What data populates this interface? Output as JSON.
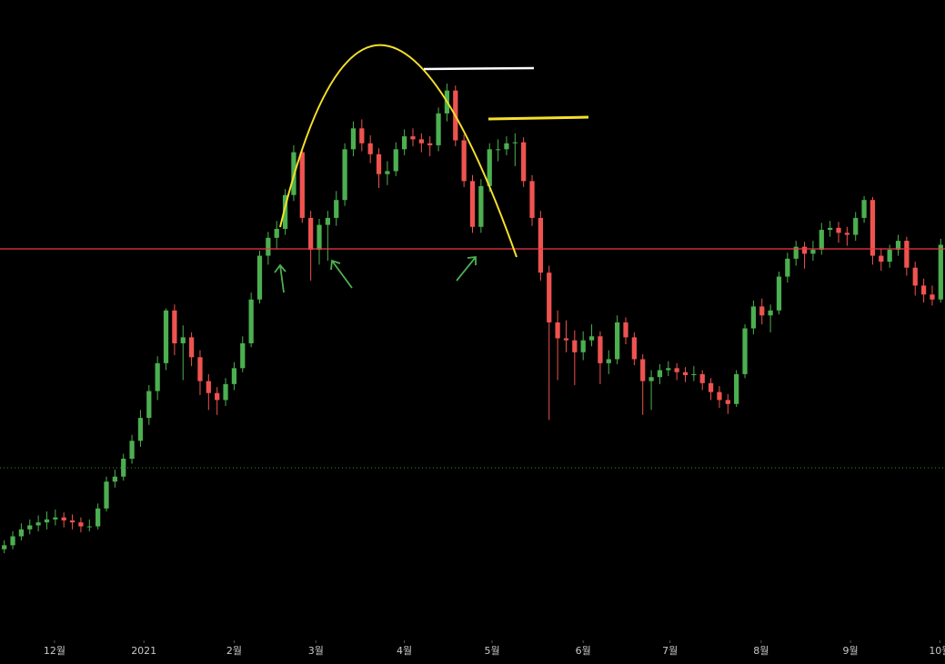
{
  "chart_data": {
    "type": "candlestick",
    "up_color": "#4caf50",
    "down_color": "#ef5350",
    "ylim": [
      9.3,
      73.2
    ],
    "xticks": [
      {
        "value": 5.9,
        "label": "12월"
      },
      {
        "value": 16.4,
        "label": "2021"
      },
      {
        "value": 27.0,
        "label": "2월"
      },
      {
        "value": 36.6,
        "label": "3월"
      },
      {
        "value": 47.0,
        "label": "4월"
      },
      {
        "value": 57.3,
        "label": "5월"
      },
      {
        "value": 68.0,
        "label": "6월"
      },
      {
        "value": 78.2,
        "label": "7월"
      },
      {
        "value": 88.9,
        "label": "8월"
      },
      {
        "value": 99.4,
        "label": "9월"
      },
      {
        "value": 109.9,
        "label": "10월"
      }
    ],
    "candles": [
      [
        18.0,
        18.9,
        17.6,
        18.4
      ],
      [
        18.4,
        19.8,
        18.0,
        19.3
      ],
      [
        19.3,
        20.6,
        18.9,
        20.0
      ],
      [
        20.0,
        21.0,
        19.5,
        20.4
      ],
      [
        20.4,
        21.4,
        19.8,
        20.7
      ],
      [
        20.7,
        21.8,
        20.0,
        21.0
      ],
      [
        21.0,
        22.0,
        20.4,
        21.2
      ],
      [
        21.2,
        21.7,
        20.2,
        20.9
      ],
      [
        20.9,
        21.5,
        20.0,
        20.7
      ],
      [
        20.7,
        21.2,
        19.7,
        20.3
      ],
      [
        20.3,
        21.0,
        19.8,
        20.3
      ],
      [
        20.3,
        22.6,
        20.0,
        22.1
      ],
      [
        22.1,
        25.3,
        21.8,
        24.8
      ],
      [
        24.8,
        26.0,
        24.2,
        25.3
      ],
      [
        25.3,
        27.6,
        24.9,
        27.1
      ],
      [
        27.1,
        29.5,
        26.6,
        28.9
      ],
      [
        28.9,
        32.0,
        28.3,
        31.2
      ],
      [
        31.2,
        34.5,
        30.5,
        33.9
      ],
      [
        33.9,
        37.4,
        33.0,
        36.7
      ],
      [
        36.7,
        42.2,
        36.0,
        42.0
      ],
      [
        42.0,
        42.6,
        37.5,
        38.7
      ],
      [
        38.7,
        40.5,
        35.0,
        39.3
      ],
      [
        39.3,
        39.8,
        36.4,
        37.3
      ],
      [
        37.3,
        38.0,
        33.5,
        34.9
      ],
      [
        34.9,
        35.6,
        32.0,
        33.7
      ],
      [
        33.7,
        34.3,
        31.5,
        33.0
      ],
      [
        33.0,
        35.2,
        32.4,
        34.6
      ],
      [
        34.6,
        36.8,
        34.0,
        36.2
      ],
      [
        36.2,
        39.4,
        35.8,
        38.7
      ],
      [
        38.7,
        43.8,
        38.3,
        43.1
      ],
      [
        43.1,
        48.0,
        42.7,
        47.5
      ],
      [
        47.5,
        49.9,
        46.6,
        49.3
      ],
      [
        49.3,
        51.0,
        48.2,
        50.2
      ],
      [
        50.2,
        54.2,
        49.6,
        53.6
      ],
      [
        53.6,
        58.6,
        53.0,
        57.9
      ],
      [
        57.9,
        58.3,
        50.8,
        51.3
      ],
      [
        51.3,
        52.0,
        45.0,
        48.1
      ],
      [
        48.1,
        51.2,
        46.6,
        50.6
      ],
      [
        50.6,
        52.0,
        47.0,
        51.3
      ],
      [
        51.3,
        54.0,
        50.5,
        53.1
      ],
      [
        53.1,
        58.8,
        52.5,
        58.2
      ],
      [
        58.2,
        61.0,
        57.5,
        60.3
      ],
      [
        60.3,
        61.2,
        58.0,
        58.8
      ],
      [
        58.8,
        59.6,
        56.8,
        57.7
      ],
      [
        57.7,
        58.3,
        54.3,
        55.7
      ],
      [
        55.7,
        57.0,
        54.6,
        56.0
      ],
      [
        56.0,
        58.9,
        55.5,
        58.2
      ],
      [
        58.2,
        60.2,
        57.6,
        59.5
      ],
      [
        59.5,
        60.3,
        58.5,
        59.2
      ],
      [
        59.2,
        59.8,
        57.9,
        58.8
      ],
      [
        58.8,
        59.5,
        57.5,
        58.6
      ],
      [
        58.6,
        62.4,
        58.0,
        61.8
      ],
      [
        61.8,
        64.8,
        61.0,
        64.1
      ],
      [
        64.1,
        64.6,
        58.5,
        59.1
      ],
      [
        59.1,
        59.7,
        54.4,
        55.0
      ],
      [
        55.0,
        55.6,
        49.8,
        50.4
      ],
      [
        50.4,
        55.2,
        49.8,
        54.5
      ],
      [
        54.5,
        58.8,
        53.9,
        58.2
      ],
      [
        58.2,
        59.2,
        57.0,
        58.2
      ],
      [
        58.2,
        59.5,
        57.6,
        58.8
      ],
      [
        58.8,
        59.8,
        56.5,
        58.9
      ],
      [
        58.9,
        59.4,
        54.4,
        55.0
      ],
      [
        55.0,
        55.6,
        50.5,
        51.3
      ],
      [
        51.3,
        52.0,
        45.0,
        45.8
      ],
      [
        45.8,
        46.5,
        31.0,
        40.8
      ],
      [
        40.8,
        42.0,
        35.0,
        39.2
      ],
      [
        39.2,
        41.0,
        37.8,
        39.0
      ],
      [
        39.0,
        40.0,
        34.5,
        37.8
      ],
      [
        37.8,
        39.9,
        37.0,
        39.0
      ],
      [
        39.0,
        40.6,
        38.4,
        39.4
      ],
      [
        39.4,
        39.9,
        34.6,
        36.7
      ],
      [
        36.7,
        38.0,
        35.6,
        37.1
      ],
      [
        37.1,
        41.5,
        36.6,
        40.8
      ],
      [
        40.8,
        41.3,
        38.6,
        39.3
      ],
      [
        39.3,
        39.8,
        36.5,
        37.1
      ],
      [
        37.1,
        37.6,
        31.5,
        34.9
      ],
      [
        34.9,
        36.0,
        32.0,
        35.3
      ],
      [
        35.3,
        36.6,
        34.6,
        36.0
      ],
      [
        36.0,
        36.9,
        35.4,
        36.2
      ],
      [
        36.2,
        36.7,
        35.0,
        35.8
      ],
      [
        35.8,
        36.3,
        34.8,
        35.5
      ],
      [
        35.5,
        36.4,
        34.9,
        35.6
      ],
      [
        35.6,
        36.0,
        34.0,
        34.7
      ],
      [
        34.7,
        35.2,
        33.0,
        33.8
      ],
      [
        33.8,
        34.4,
        32.2,
        33.0
      ],
      [
        33.0,
        33.6,
        31.6,
        32.6
      ],
      [
        32.6,
        36.0,
        32.3,
        35.6
      ],
      [
        35.6,
        40.6,
        35.2,
        40.2
      ],
      [
        40.2,
        43.0,
        39.6,
        42.4
      ],
      [
        42.4,
        43.2,
        40.6,
        41.5
      ],
      [
        41.5,
        42.6,
        39.8,
        42.0
      ],
      [
        42.0,
        45.9,
        41.6,
        45.4
      ],
      [
        45.4,
        47.8,
        44.8,
        47.2
      ],
      [
        47.2,
        49.0,
        46.5,
        48.4
      ],
      [
        48.4,
        48.9,
        46.2,
        47.7
      ],
      [
        47.7,
        49.0,
        47.0,
        48.1
      ],
      [
        48.1,
        50.8,
        47.6,
        50.1
      ],
      [
        50.1,
        51.0,
        49.4,
        50.3
      ],
      [
        50.3,
        50.9,
        48.8,
        49.8
      ],
      [
        49.8,
        50.4,
        48.5,
        49.6
      ],
      [
        49.6,
        51.9,
        49.0,
        51.3
      ],
      [
        51.3,
        53.5,
        50.8,
        53.1
      ],
      [
        53.1,
        53.4,
        46.6,
        47.5
      ],
      [
        47.5,
        48.2,
        46.0,
        46.9
      ],
      [
        46.9,
        48.6,
        46.3,
        48.1
      ],
      [
        48.1,
        49.6,
        47.5,
        49.0
      ],
      [
        49.0,
        49.4,
        45.5,
        46.3
      ],
      [
        46.3,
        46.9,
        43.5,
        44.5
      ],
      [
        44.5,
        45.2,
        42.8,
        43.6
      ],
      [
        43.6,
        44.5,
        42.5,
        43.1
      ],
      [
        43.1,
        49.2,
        42.8,
        48.6
      ]
    ]
  }
}
